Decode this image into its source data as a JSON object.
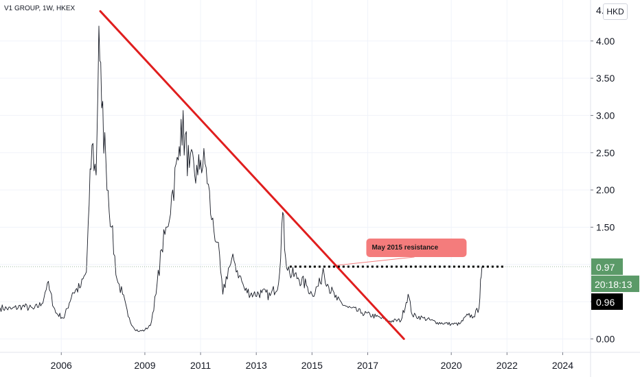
{
  "header": {
    "symbol": "V1 GROUP, 1W, HKEX"
  },
  "axis": {
    "currency": "HKD"
  },
  "colors": {
    "price": "#131722",
    "trendline": "#e01e1e",
    "last_price_bg": "#5b9a68",
    "countdown_bg": "#5b9a68",
    "crosshair_bg": "#000000",
    "annotation_bg": "#f47c7c"
  },
  "chart_data": {
    "type": "line",
    "xlim": [
      2003.8,
      2025.0
    ],
    "ylim": [
      -0.18,
      4.55
    ],
    "x_ticks": [
      2006,
      2009,
      2011,
      2013,
      2015,
      2017,
      2020,
      2022,
      2024
    ],
    "y_ticks": [
      0.0,
      0.5,
      1.0,
      1.5,
      2.0,
      2.5,
      3.0,
      3.5,
      4.0
    ],
    "y_tick_labels": [
      "0.00",
      "0.50",
      "",
      "1.50",
      "2.00",
      "2.50",
      "3.00",
      "3.50",
      "4.00"
    ],
    "top_tick_label": "4.",
    "series": [
      {
        "x": [
          2003.8,
          2004.2,
          2004.6,
          2005.0,
          2005.3,
          2005.5,
          2005.8,
          2006.1,
          2006.4,
          2006.7,
          2006.9,
          2007.0,
          2007.1,
          2007.25,
          2007.35,
          2007.45,
          2007.6,
          2007.8,
          2008.0,
          2008.2,
          2008.4,
          2008.6,
          2008.8,
          2009.0,
          2009.2,
          2009.4,
          2009.6,
          2009.8,
          2010.0,
          2010.2,
          2010.3,
          2010.6,
          2010.9,
          2011.0,
          2011.2,
          2011.4,
          2011.6,
          2011.8,
          2012.0,
          2012.2,
          2012.4,
          2012.6,
          2012.9,
          2013.2,
          2013.5,
          2013.8,
          2013.95,
          2014.05,
          2014.2,
          2014.5,
          2014.8,
          2015.0,
          2015.3,
          2015.4,
          2015.6,
          2015.9,
          2016.3,
          2016.8,
          2017.3,
          2017.8,
          2018.2,
          2018.45,
          2018.6,
          2019.0,
          2019.5,
          2020.0,
          2020.3,
          2020.6,
          2020.8,
          2021.0,
          2021.05,
          2021.1
        ],
        "y": [
          0.42,
          0.4,
          0.44,
          0.4,
          0.47,
          0.75,
          0.35,
          0.28,
          0.62,
          0.7,
          0.9,
          1.8,
          2.6,
          2.2,
          4.2,
          3.1,
          2.4,
          1.5,
          0.8,
          0.6,
          0.3,
          0.15,
          0.1,
          0.12,
          0.18,
          0.6,
          1.2,
          1.5,
          2.0,
          2.4,
          2.95,
          2.3,
          2.2,
          2.4,
          2.3,
          1.6,
          1.3,
          0.6,
          0.95,
          1.05,
          0.85,
          0.65,
          0.6,
          0.62,
          0.58,
          0.75,
          1.7,
          1.1,
          0.88,
          0.82,
          0.72,
          0.6,
          0.75,
          0.95,
          0.7,
          0.52,
          0.42,
          0.35,
          0.3,
          0.24,
          0.25,
          0.6,
          0.32,
          0.28,
          0.22,
          0.2,
          0.2,
          0.32,
          0.3,
          0.42,
          0.8,
          0.97
        ]
      }
    ],
    "annotations": {
      "resistance_label": "May 2015 resistance",
      "resistance_level": 0.97,
      "resistance_from_x": 2014.2,
      "resistance_to_x": 2021.95,
      "trendline": {
        "x1": 2007.4,
        "y1": 4.4,
        "x2": 2018.3,
        "y2": 0.0
      }
    },
    "price_labels": {
      "last_price": "0.97",
      "countdown": "20:18:13",
      "crosshair_price": "0.96",
      "crosshair_value": 0.96
    }
  }
}
